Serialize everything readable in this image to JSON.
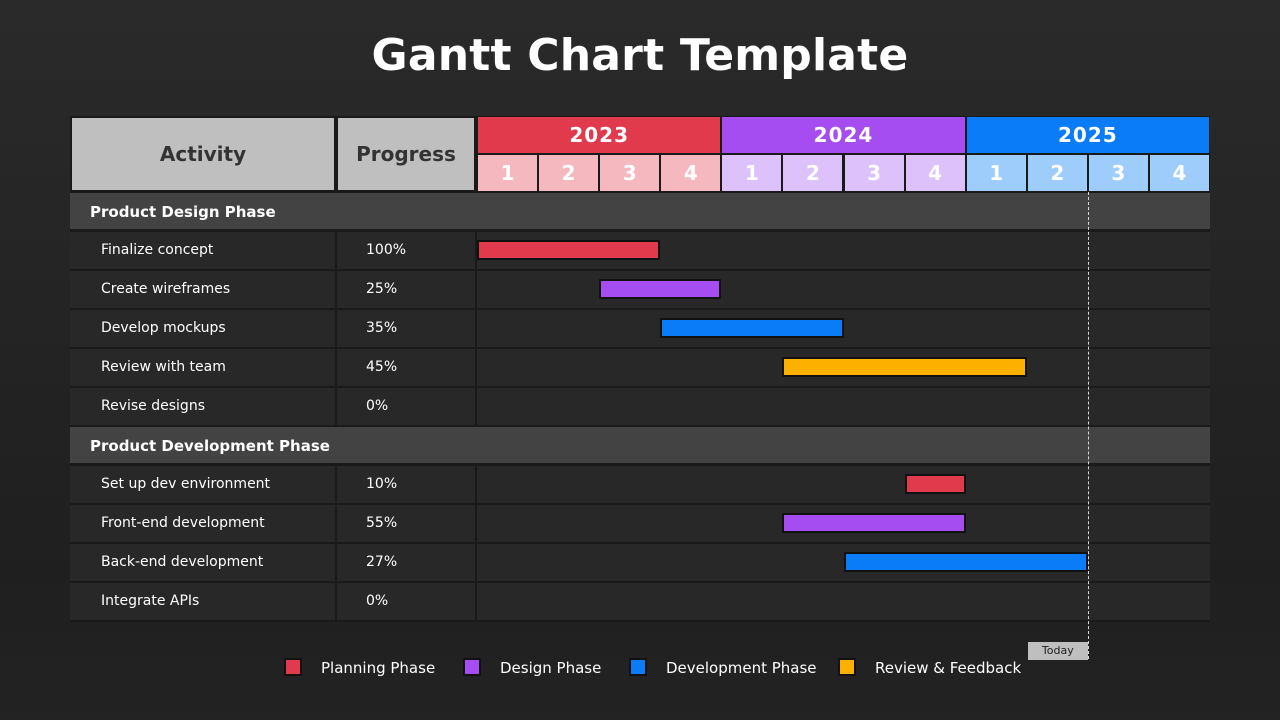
{
  "title": "Gantt Chart Template",
  "header": {
    "activity_label": "Activity",
    "progress_label": "Progress",
    "years": [
      {
        "label": "2023",
        "color": "#e03a4c",
        "quarter_color": "#f6b8bf"
      },
      {
        "label": "2024",
        "color": "#a64df2",
        "quarter_color": "#dcc1fb"
      },
      {
        "label": "2025",
        "color": "#0a7cf7",
        "quarter_color": "#9ecdfb"
      }
    ],
    "quarters": [
      "1",
      "2",
      "3",
      "4"
    ]
  },
  "today_label": "Today",
  "legend": [
    {
      "label": "Planning Phase",
      "color": "#e03a4c"
    },
    {
      "label": "Design Phase",
      "color": "#a64df2"
    },
    {
      "label": "Development Phase",
      "color": "#0a7cf7"
    },
    {
      "label": "Review & Feedback",
      "color": "#fdb000"
    }
  ],
  "chart_data": {
    "type": "gantt",
    "time_unit": "quarter",
    "timeline": [
      "2023 Q1",
      "2023 Q2",
      "2023 Q3",
      "2023 Q4",
      "2024 Q1",
      "2024 Q2",
      "2024 Q3",
      "2024 Q4",
      "2025 Q1",
      "2025 Q2",
      "2025 Q3",
      "2025 Q4"
    ],
    "today": "2025 Q3",
    "sections": [
      {
        "phase": "Product Design Phase",
        "tasks": [
          {
            "activity": "Finalize concept",
            "progress": "100%",
            "start": "2023 Q1",
            "end": "2023 Q3",
            "category": "Planning Phase"
          },
          {
            "activity": "Create wireframes",
            "progress": "25%",
            "start": "2023 Q3",
            "end": "2023 Q4",
            "category": "Design Phase"
          },
          {
            "activity": "Develop mockups",
            "progress": "35%",
            "start": "2023 Q4",
            "end": "2024 Q2",
            "category": "Development Phase"
          },
          {
            "activity": "Review with team",
            "progress": "45%",
            "start": "2024 Q2",
            "end": "2025 Q1",
            "category": "Review & Feedback"
          },
          {
            "activity": "Revise designs",
            "progress": "0%",
            "start": null,
            "end": null,
            "category": null
          }
        ]
      },
      {
        "phase": "Product Development Phase",
        "tasks": [
          {
            "activity": "Set up dev environment",
            "progress": "10%",
            "start": "2024 Q4",
            "end": "2024 Q4",
            "category": "Planning Phase"
          },
          {
            "activity": "Front-end development",
            "progress": "55%",
            "start": "2024 Q2",
            "end": "2024 Q4",
            "category": "Design Phase"
          },
          {
            "activity": "Back-end development",
            "progress": "27%",
            "start": "2024 Q3",
            "end": "2025 Q2",
            "category": "Development Phase"
          },
          {
            "activity": "Integrate APIs",
            "progress": "0%",
            "start": null,
            "end": null,
            "category": null
          }
        ]
      }
    ]
  }
}
